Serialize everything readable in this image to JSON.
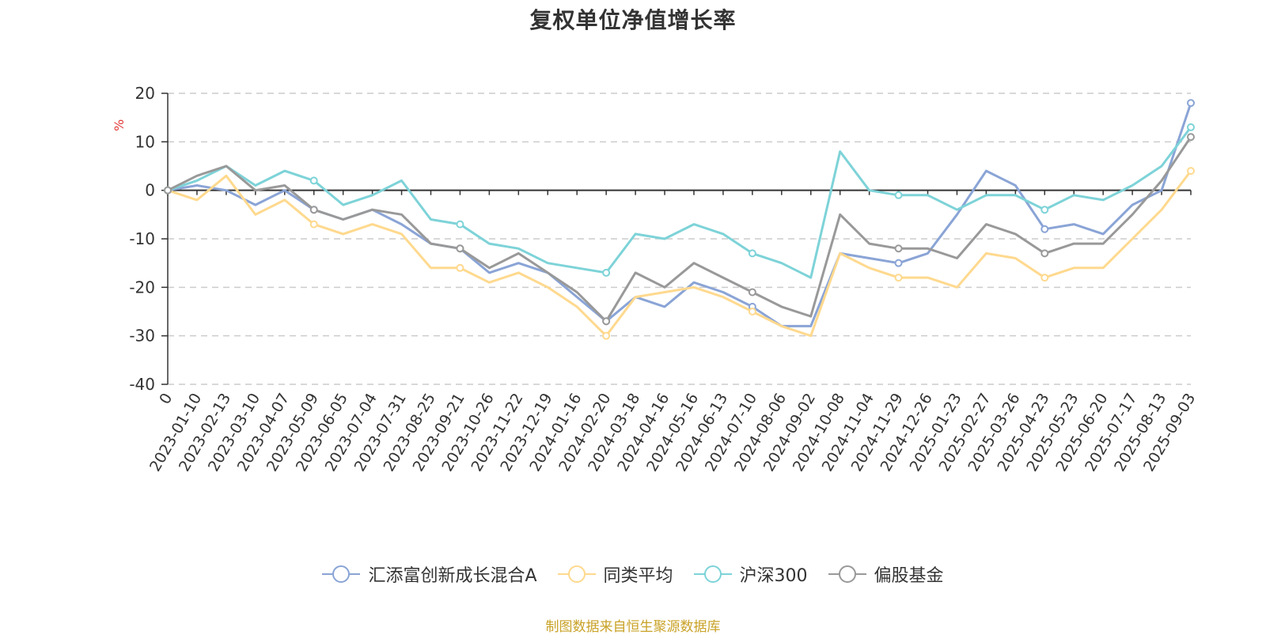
{
  "chart_data": {
    "type": "line",
    "title": "复权单位净值增长率",
    "ylabel": "%",
    "ylim": [
      -40,
      20
    ],
    "yticks": [
      20,
      10,
      0,
      -10,
      -20,
      -30,
      -40
    ],
    "grid": true,
    "legend_position": "bottom",
    "x": [
      "0",
      "2023-01-10",
      "2023-02-13",
      "2023-03-10",
      "2023-04-07",
      "2023-05-09",
      "2023-06-05",
      "2023-07-04",
      "2023-07-31",
      "2023-08-25",
      "2023-09-21",
      "2023-10-26",
      "2023-11-22",
      "2023-12-19",
      "2024-01-16",
      "2024-02-20",
      "2024-03-18",
      "2024-04-16",
      "2024-05-16",
      "2024-06-13",
      "2024-07-10",
      "2024-08-06",
      "2024-09-02",
      "2024-10-08",
      "2024-11-04",
      "2024-11-29",
      "2024-12-26",
      "2025-01-23",
      "2025-02-27",
      "2025-03-26",
      "2025-04-23",
      "2025-05-23",
      "2025-06-20",
      "2025-07-17",
      "2025-08-13",
      "2025-09-03"
    ],
    "series": [
      {
        "name": "汇添富创新成长混合A",
        "color": "#8aa4d6",
        "values": [
          0,
          1,
          0,
          -3,
          0,
          -4,
          -6,
          -4,
          -7,
          -11,
          -12,
          -17,
          -15,
          -17,
          -22,
          -27,
          -22,
          -24,
          -19,
          -21,
          -24,
          -28,
          -28,
          -13,
          -14,
          -15,
          -13,
          -5,
          4,
          1,
          -8,
          -7,
          -9,
          -3,
          0,
          18
        ]
      },
      {
        "name": "同类平均",
        "color": "#ffd98e",
        "values": [
          0,
          -2,
          3,
          -5,
          -2,
          -7,
          -9,
          -7,
          -9,
          -16,
          -16,
          -19,
          -17,
          -20,
          -24,
          -30,
          -22,
          -21,
          -20,
          -22,
          -25,
          -28,
          -30,
          -13,
          -16,
          -18,
          -18,
          -20,
          -13,
          -14,
          -18,
          -16,
          -16,
          -10,
          -4,
          4
        ]
      },
      {
        "name": "沪深300",
        "color": "#7dd3d8",
        "values": [
          0,
          2,
          5,
          1,
          4,
          2,
          -3,
          -1,
          2,
          -6,
          -7,
          -11,
          -12,
          -15,
          -16,
          -17,
          -9,
          -10,
          -7,
          -9,
          -13,
          -15,
          -18,
          8,
          0,
          -1,
          -1,
          -4,
          -1,
          -1,
          -4,
          -1,
          -2,
          1,
          5,
          13
        ]
      },
      {
        "name": "偏股基金",
        "color": "#999999",
        "values": [
          0,
          3,
          5,
          0,
          1,
          -4,
          -6,
          -4,
          -5,
          -11,
          -12,
          -16,
          -13,
          -17,
          -21,
          -27,
          -17,
          -20,
          -15,
          -18,
          -21,
          -24,
          -26,
          -5,
          -11,
          -12,
          -12,
          -14,
          -7,
          -9,
          -13,
          -11,
          -11,
          -5,
          2,
          11
        ]
      }
    ]
  },
  "source_note": "制图数据来自恒生聚源数据库"
}
